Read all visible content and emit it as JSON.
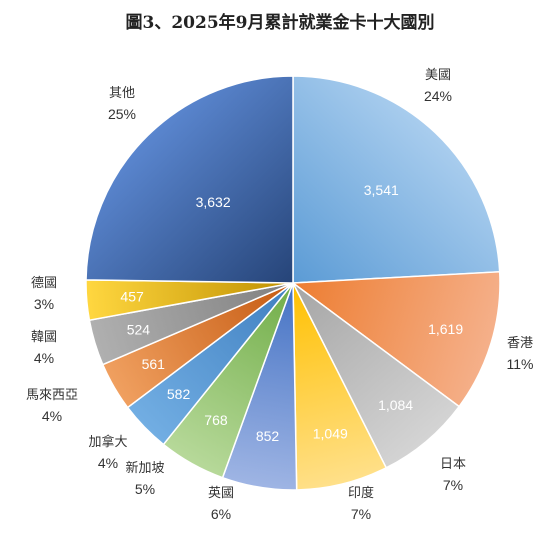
{
  "chart_data": {
    "type": "pie",
    "title": "圖3、2025年9月累計就業金卡十大國別",
    "categories": [
      "美國",
      "香港",
      "日本",
      "印度",
      "英國",
      "新加坡",
      "加拿大",
      "馬來西亞",
      "韓國",
      "德國",
      "其他"
    ],
    "values": [
      3541,
      1619,
      1084,
      1049,
      852,
      768,
      582,
      561,
      524,
      457,
      3632
    ],
    "value_labels": [
      "3,541",
      "1,619",
      "1,084",
      "1,049",
      "852",
      "768",
      "582",
      "561",
      "524",
      "457",
      "3,632"
    ],
    "percent_labels": [
      "24%",
      "11%",
      "7%",
      "7%",
      "6%",
      "5%",
      "4%",
      "4%",
      "4%",
      "3%",
      "25%"
    ],
    "colors": [
      [
        "#5b9bd5",
        "#a9cdee"
      ],
      [
        "#ed7d31",
        "#f5b08a"
      ],
      [
        "#a5a5a5",
        "#d4d4d4"
      ],
      [
        "#ffc000",
        "#ffe08a"
      ],
      [
        "#4472c4",
        "#9fb5e4"
      ],
      [
        "#70ad47",
        "#b7d99a"
      ],
      [
        "#3f7fc0",
        "#72aee3"
      ],
      [
        "#c55a11",
        "#f0a060"
      ],
      [
        "#7f7f7f",
        "#b0b0b0"
      ],
      [
        "#bf9000",
        "#ffd740"
      ],
      [
        "#264478",
        "#5a86cf"
      ]
    ],
    "legend": "none"
  }
}
